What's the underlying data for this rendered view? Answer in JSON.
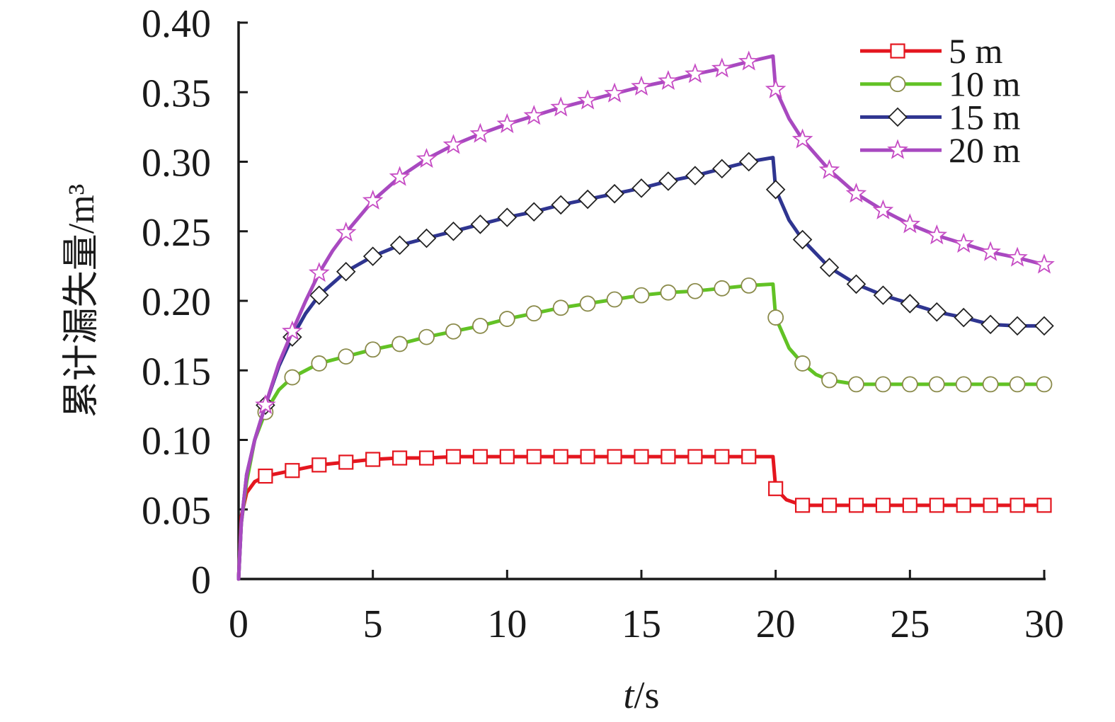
{
  "chart_data": {
    "type": "line",
    "xlabel": "t/s",
    "ylabel": "累计漏失量/m³",
    "xlim": [
      0,
      30
    ],
    "ylim": [
      0,
      0.4
    ],
    "xticks": [
      "0",
      "5",
      "10",
      "15",
      "20",
      "25",
      "30"
    ],
    "yticks": [
      "0",
      "0.05",
      "0.10",
      "0.15",
      "0.20",
      "0.25",
      "0.30",
      "0.35",
      "0.40"
    ],
    "grid": false,
    "legend": "top-right",
    "series": [
      {
        "name": "5 m",
        "color": "#e4161f",
        "marker": "square",
        "marker_fill": "#ffffff",
        "marker_edge": "#e4161f",
        "points": [
          [
            0,
            0
          ],
          [
            0.1,
            0.045
          ],
          [
            0.3,
            0.062
          ],
          [
            0.6,
            0.07
          ],
          [
            1,
            0.074
          ],
          [
            2,
            0.078
          ],
          [
            3,
            0.082
          ],
          [
            4,
            0.084
          ],
          [
            5,
            0.086
          ],
          [
            6,
            0.087
          ],
          [
            7,
            0.087
          ],
          [
            8,
            0.088
          ],
          [
            9,
            0.088
          ],
          [
            10,
            0.088
          ],
          [
            11,
            0.088
          ],
          [
            12,
            0.088
          ],
          [
            13,
            0.088
          ],
          [
            14,
            0.088
          ],
          [
            15,
            0.088
          ],
          [
            16,
            0.088
          ],
          [
            17,
            0.088
          ],
          [
            18,
            0.088
          ],
          [
            19,
            0.088
          ],
          [
            19.9,
            0.088
          ],
          [
            20,
            0.065
          ],
          [
            20.4,
            0.057
          ],
          [
            21,
            0.053
          ],
          [
            22,
            0.053
          ],
          [
            23,
            0.053
          ],
          [
            24,
            0.053
          ],
          [
            25,
            0.053
          ],
          [
            26,
            0.053
          ],
          [
            27,
            0.053
          ],
          [
            28,
            0.053
          ],
          [
            29,
            0.053
          ],
          [
            30,
            0.053
          ]
        ]
      },
      {
        "name": "10 m",
        "color": "#62c225",
        "marker": "circle",
        "marker_fill": "#ffffff",
        "marker_edge": "#8a8a4a",
        "points": [
          [
            0,
            0
          ],
          [
            0.1,
            0.04
          ],
          [
            0.3,
            0.07
          ],
          [
            0.6,
            0.1
          ],
          [
            1,
            0.12
          ],
          [
            1.5,
            0.136
          ],
          [
            2,
            0.145
          ],
          [
            3,
            0.155
          ],
          [
            4,
            0.16
          ],
          [
            5,
            0.165
          ],
          [
            6,
            0.169
          ],
          [
            7,
            0.174
          ],
          [
            8,
            0.178
          ],
          [
            9,
            0.182
          ],
          [
            10,
            0.187
          ],
          [
            11,
            0.191
          ],
          [
            12,
            0.195
          ],
          [
            13,
            0.198
          ],
          [
            14,
            0.201
          ],
          [
            15,
            0.204
          ],
          [
            16,
            0.206
          ],
          [
            17,
            0.207
          ],
          [
            18,
            0.209
          ],
          [
            19,
            0.211
          ],
          [
            19.9,
            0.212
          ],
          [
            20,
            0.188
          ],
          [
            20.5,
            0.166
          ],
          [
            21,
            0.155
          ],
          [
            21.5,
            0.147
          ],
          [
            22,
            0.143
          ],
          [
            23,
            0.14
          ],
          [
            24,
            0.14
          ],
          [
            25,
            0.14
          ],
          [
            26,
            0.14
          ],
          [
            27,
            0.14
          ],
          [
            28,
            0.14
          ],
          [
            29,
            0.14
          ],
          [
            30,
            0.14
          ]
        ]
      },
      {
        "name": "15 m",
        "color": "#2f3590",
        "marker": "diamond",
        "marker_fill": "#ffffff",
        "marker_edge": "#222222",
        "points": [
          [
            0,
            0
          ],
          [
            0.1,
            0.04
          ],
          [
            0.3,
            0.075
          ],
          [
            0.6,
            0.1
          ],
          [
            1,
            0.125
          ],
          [
            1.5,
            0.153
          ],
          [
            2,
            0.174
          ],
          [
            2.5,
            0.191
          ],
          [
            3,
            0.204
          ],
          [
            4,
            0.221
          ],
          [
            5,
            0.232
          ],
          [
            6,
            0.24
          ],
          [
            7,
            0.245
          ],
          [
            8,
            0.25
          ],
          [
            9,
            0.255
          ],
          [
            10,
            0.26
          ],
          [
            11,
            0.264
          ],
          [
            12,
            0.269
          ],
          [
            13,
            0.273
          ],
          [
            14,
            0.277
          ],
          [
            15,
            0.281
          ],
          [
            16,
            0.286
          ],
          [
            17,
            0.29
          ],
          [
            18,
            0.295
          ],
          [
            19,
            0.3
          ],
          [
            19.9,
            0.303
          ],
          [
            20,
            0.28
          ],
          [
            20.5,
            0.258
          ],
          [
            21,
            0.244
          ],
          [
            22,
            0.224
          ],
          [
            23,
            0.212
          ],
          [
            24,
            0.204
          ],
          [
            25,
            0.198
          ],
          [
            26,
            0.192
          ],
          [
            27,
            0.188
          ],
          [
            28,
            0.183
          ],
          [
            29,
            0.182
          ],
          [
            30,
            0.182
          ]
        ]
      },
      {
        "name": "20 m",
        "color": "#a849c0",
        "marker": "star",
        "marker_fill": "#ffffff",
        "marker_edge": "#c64cc4",
        "points": [
          [
            0,
            0
          ],
          [
            0.1,
            0.04
          ],
          [
            0.3,
            0.075
          ],
          [
            0.6,
            0.1
          ],
          [
            1,
            0.125
          ],
          [
            1.5,
            0.155
          ],
          [
            2,
            0.178
          ],
          [
            2.5,
            0.2
          ],
          [
            3,
            0.22
          ],
          [
            3.5,
            0.236
          ],
          [
            4,
            0.249
          ],
          [
            5,
            0.272
          ],
          [
            6,
            0.289
          ],
          [
            7,
            0.302
          ],
          [
            8,
            0.312
          ],
          [
            9,
            0.32
          ],
          [
            10,
            0.327
          ],
          [
            11,
            0.333
          ],
          [
            12,
            0.339
          ],
          [
            13,
            0.344
          ],
          [
            14,
            0.349
          ],
          [
            15,
            0.354
          ],
          [
            16,
            0.358
          ],
          [
            17,
            0.363
          ],
          [
            18,
            0.367
          ],
          [
            19,
            0.372
          ],
          [
            19.9,
            0.376
          ],
          [
            20,
            0.352
          ],
          [
            20.5,
            0.331
          ],
          [
            21,
            0.316
          ],
          [
            22,
            0.294
          ],
          [
            23,
            0.277
          ],
          [
            24,
            0.265
          ],
          [
            25,
            0.255
          ],
          [
            26,
            0.247
          ],
          [
            27,
            0.241
          ],
          [
            28,
            0.235
          ],
          [
            29,
            0.231
          ],
          [
            30,
            0.226
          ]
        ]
      }
    ]
  }
}
